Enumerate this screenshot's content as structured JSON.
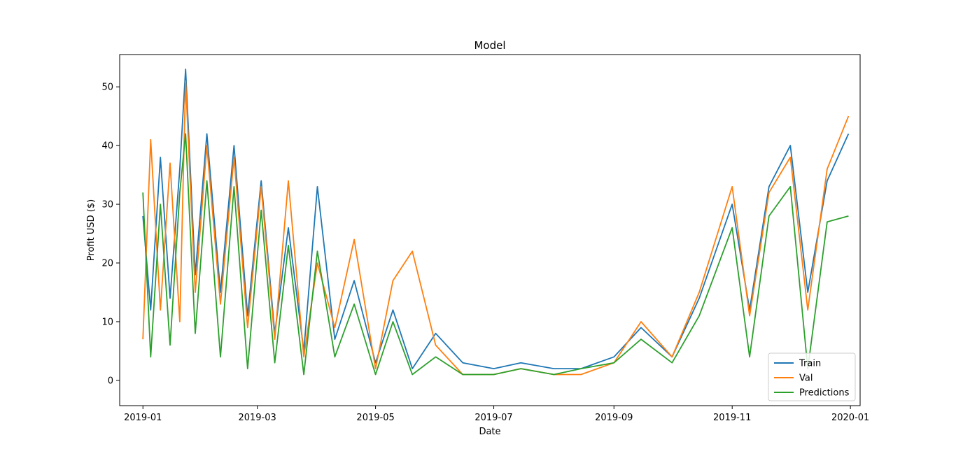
{
  "chart_data": {
    "type": "line",
    "title": "Model",
    "xlabel": "Date",
    "ylabel": "Profit USD ($)",
    "x_range": [
      "2018-12-20",
      "2020-01-06"
    ],
    "ylim": [
      -4.3,
      55.5
    ],
    "x_ticks": [
      "2019-01",
      "2019-03",
      "2019-05",
      "2019-07",
      "2019-09",
      "2019-11",
      "2020-01"
    ],
    "y_ticks": [
      0,
      10,
      20,
      30,
      40,
      50
    ],
    "grid": false,
    "legend": "lower-right",
    "series": [
      {
        "name": "Train",
        "color": "#1f77b4",
        "x": [
          "2019-01-01",
          "2019-01-05",
          "2019-01-10",
          "2019-01-15",
          "2019-01-20",
          "2019-01-23",
          "2019-01-28",
          "2019-02-03",
          "2019-02-10",
          "2019-02-17",
          "2019-02-24",
          "2019-03-03",
          "2019-03-10",
          "2019-03-17",
          "2019-03-25",
          "2019-04-01",
          "2019-04-10",
          "2019-04-20",
          "2019-05-01",
          "2019-05-10",
          "2019-05-20",
          "2019-06-01",
          "2019-06-15",
          "2019-07-01",
          "2019-07-15",
          "2019-08-01",
          "2019-08-15",
          "2019-09-01",
          "2019-09-15",
          "2019-10-01",
          "2019-10-15",
          "2019-11-01",
          "2019-11-10",
          "2019-11-20",
          "2019-12-01",
          "2019-12-10",
          "2019-12-20",
          "2019-12-31"
        ],
        "y": [
          28,
          12,
          38,
          14,
          36,
          53,
          18,
          42,
          15,
          40,
          11,
          34,
          8,
          26,
          5,
          33,
          7,
          17,
          3,
          12,
          2,
          8,
          3,
          2,
          3,
          2,
          2,
          4,
          9,
          4,
          14,
          30,
          12,
          33,
          40,
          15,
          34,
          42
        ]
      },
      {
        "name": "Val",
        "color": "#ff7f0e",
        "x": [
          "2019-01-01",
          "2019-01-05",
          "2019-01-10",
          "2019-01-15",
          "2019-01-20",
          "2019-01-23",
          "2019-01-28",
          "2019-02-03",
          "2019-02-10",
          "2019-02-17",
          "2019-02-24",
          "2019-03-03",
          "2019-03-10",
          "2019-03-17",
          "2019-03-25",
          "2019-04-01",
          "2019-04-10",
          "2019-04-20",
          "2019-05-01",
          "2019-05-10",
          "2019-05-20",
          "2019-06-01",
          "2019-06-15",
          "2019-07-01",
          "2019-07-15",
          "2019-08-01",
          "2019-08-15",
          "2019-09-01",
          "2019-09-15",
          "2019-10-01",
          "2019-10-15",
          "2019-11-01",
          "2019-11-10",
          "2019-11-20",
          "2019-12-01",
          "2019-12-10",
          "2019-12-20",
          "2019-12-31"
        ],
        "y": [
          7,
          41,
          12,
          37,
          10,
          51,
          15,
          40,
          13,
          38,
          9,
          33,
          7,
          34,
          4,
          20,
          9,
          24,
          2,
          17,
          22,
          6,
          1,
          1,
          2,
          1,
          1,
          3,
          10,
          4,
          15,
          33,
          11,
          32,
          38,
          12,
          36,
          45
        ]
      },
      {
        "name": "Predictions",
        "color": "#2ca02c",
        "x": [
          "2019-01-01",
          "2019-01-05",
          "2019-01-10",
          "2019-01-15",
          "2019-01-20",
          "2019-01-23",
          "2019-01-28",
          "2019-02-03",
          "2019-02-10",
          "2019-02-17",
          "2019-02-24",
          "2019-03-03",
          "2019-03-10",
          "2019-03-17",
          "2019-03-25",
          "2019-04-01",
          "2019-04-10",
          "2019-04-20",
          "2019-05-01",
          "2019-05-10",
          "2019-05-20",
          "2019-06-01",
          "2019-06-15",
          "2019-07-01",
          "2019-07-15",
          "2019-08-01",
          "2019-08-15",
          "2019-09-01",
          "2019-09-15",
          "2019-10-01",
          "2019-10-15",
          "2019-11-01",
          "2019-11-10",
          "2019-11-20",
          "2019-12-01",
          "2019-12-10",
          "2019-12-20",
          "2019-12-31"
        ],
        "y": [
          32,
          4,
          30,
          6,
          32,
          42,
          8,
          34,
          4,
          33,
          2,
          29,
          3,
          23,
          1,
          22,
          4,
          13,
          1,
          10,
          1,
          4,
          1,
          1,
          2,
          1,
          2,
          3,
          7,
          3,
          11,
          26,
          4,
          28,
          33,
          2,
          27,
          28
        ]
      }
    ]
  }
}
